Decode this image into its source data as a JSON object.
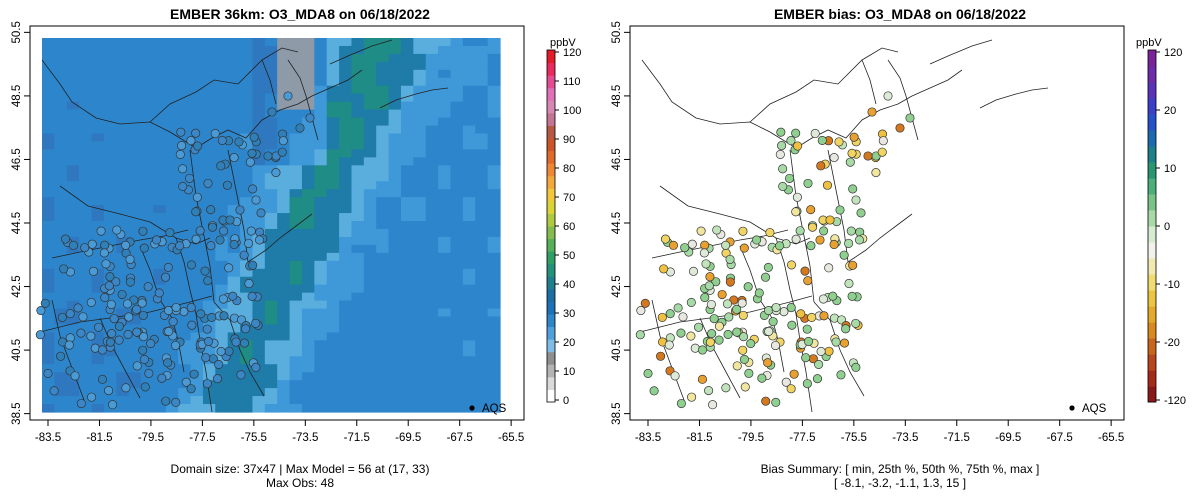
{
  "left": {
    "title": "EMBER 36km: O3_MDA8 on 06/18/2022",
    "caption_line1": "Domain size: 37x47 | Max Model = 56 at (17, 33)",
    "caption_line2": "Max Obs: 48",
    "legend_label": "AQS",
    "colorbar": {
      "unit": "ppbV",
      "ticks": [
        "0",
        "10",
        "20",
        "30",
        "40",
        "50",
        "60",
        "70",
        "80",
        "90",
        "100",
        "110",
        "120"
      ],
      "colors": [
        "#ffffff",
        "#dadada",
        "#b4b4b4",
        "#8f8f8f",
        "#7ebde8",
        "#4fa1dd",
        "#2c86c9",
        "#1c72b6",
        "#1a6ea4",
        "#1f7f8e",
        "#24917a",
        "#2ea066",
        "#56b05a",
        "#84bd4d",
        "#afca3f",
        "#dbd437",
        "#f2c83a",
        "#f3a83b",
        "#ee8835",
        "#e06a2a",
        "#c95529",
        "#b75845",
        "#c47393",
        "#d888b2",
        "#e070b8",
        "#e64a90",
        "#ea2a5c",
        "#e41c2a"
      ]
    },
    "x_ticks": [
      "-83.5",
      "-81.5",
      "-79.5",
      "-77.5",
      "-75.5",
      "-73.5",
      "-71.5",
      "-69.5",
      "-67.5",
      "-65.5"
    ],
    "y_ticks": [
      "38.5",
      "40.5",
      "42.5",
      "44.5",
      "46.5",
      "48.5",
      "50.5"
    ]
  },
  "right": {
    "title": "EMBER bias: O3_MDA8 on 06/18/2022",
    "caption_line1": "Bias Summary: [ min, 25th %, 50th %, 75th %, max ]",
    "caption_line2": "[ -8.1,   -3.2,   -1.1,   1.3,   15 ]",
    "legend_label": "AQS",
    "colorbar": {
      "unit": "ppbV",
      "ticks": [
        "120",
        "20",
        "10",
        "0",
        "-10",
        "-20",
        "-120"
      ],
      "colors": [
        "#8a1a1a",
        "#a52a1a",
        "#b8461c",
        "#c8661c",
        "#d88a20",
        "#e4aa2a",
        "#ecc640",
        "#f0dc70",
        "#f0eab0",
        "#f2f2ea",
        "#d6ecd0",
        "#a8daa8",
        "#78c488",
        "#4caf7a",
        "#2a9670",
        "#1f7f8a",
        "#1e6ab0",
        "#2452c8",
        "#3a40c8",
        "#5a34b8",
        "#6e2aa8",
        "#7a2298"
      ]
    },
    "x_ticks": [
      "-83.5",
      "-81.5",
      "-79.5",
      "-77.5",
      "-75.5",
      "-73.5",
      "-71.5",
      "-69.5",
      "-67.5",
      "-65.5"
    ],
    "y_ticks": [
      "38.5",
      "40.5",
      "42.5",
      "44.5",
      "46.5",
      "48.5",
      "50.5"
    ]
  },
  "map_extent": {
    "lon": [
      -84.2,
      -65.0
    ],
    "lat": [
      38.3,
      50.7
    ]
  },
  "colors": {
    "frame": "#000000",
    "coast": "#222222",
    "point_edge": "#333333"
  }
}
